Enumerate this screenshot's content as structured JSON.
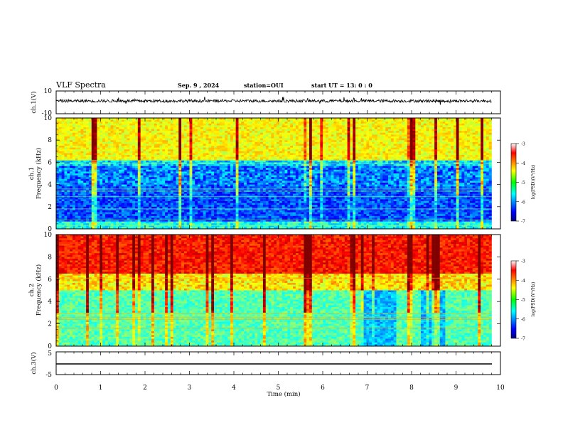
{
  "header": {
    "title": "VLF Spectra",
    "date": "Sep. 9 , 2024",
    "station": "station=OUI",
    "start": "start  UT =   13: 0  : 0"
  },
  "panels": {
    "ch1_waveform": {
      "ylabel": "ch.1(V)",
      "yticks": [
        "10",
        "-10"
      ]
    },
    "ch1_spec": {
      "ylabel_top": "ch.1",
      "ylabel_bottom": "Frequency (kHz)",
      "yticks": [
        "0",
        "2",
        "4",
        "6",
        "8",
        "10"
      ]
    },
    "ch2_spec": {
      "ylabel_top": "ch.2",
      "ylabel_bottom": "Frequency (kHz)",
      "yticks": [
        "0",
        "2",
        "4",
        "6",
        "8",
        "10"
      ]
    },
    "ch3_waveform": {
      "ylabel": "ch.3(V)",
      "yticks": [
        "5",
        "-5"
      ]
    }
  },
  "xaxis": {
    "label": "Time (min)",
    "ticks": [
      "0",
      "1",
      "2",
      "3",
      "4",
      "5",
      "6",
      "7",
      "8",
      "9",
      "10"
    ]
  },
  "colorbar": {
    "label": "log(PSD)(V²/Hz)",
    "ticks": [
      "-3",
      "-4",
      "-5",
      "-6",
      "-7"
    ]
  },
  "chart_data": [
    {
      "type": "line",
      "title": "VLF Spectra",
      "ylabel": "ch.1(V)",
      "xlabel": "Time (min)",
      "ylim": [
        -10,
        10
      ],
      "xlim": [
        0,
        10
      ],
      "series": [
        {
          "x": [
            0,
            9.8
          ],
          "values": [
            0,
            0
          ]
        }
      ]
    },
    {
      "type": "heatmap",
      "ylabel": "ch.1 Frequency (kHz)",
      "xlim": [
        0,
        10
      ],
      "ylim": [
        0,
        10
      ],
      "color_range": [
        -7,
        -3
      ],
      "data_end_min": 9.8
    },
    {
      "type": "heatmap",
      "ylabel": "ch.2 Frequency (kHz)",
      "xlim": [
        0,
        10
      ],
      "ylim": [
        0,
        10
      ],
      "color_range": [
        -7,
        -3
      ],
      "data_end_min": 9.8
    },
    {
      "type": "line",
      "ylabel": "ch.3(V)",
      "xlabel": "Time (min)",
      "ylim": [
        -5,
        5
      ],
      "xlim": [
        0,
        10
      ],
      "series": [
        {
          "x": [
            0,
            9.8
          ],
          "values": [
            -1.7,
            -1.7
          ]
        }
      ]
    }
  ]
}
